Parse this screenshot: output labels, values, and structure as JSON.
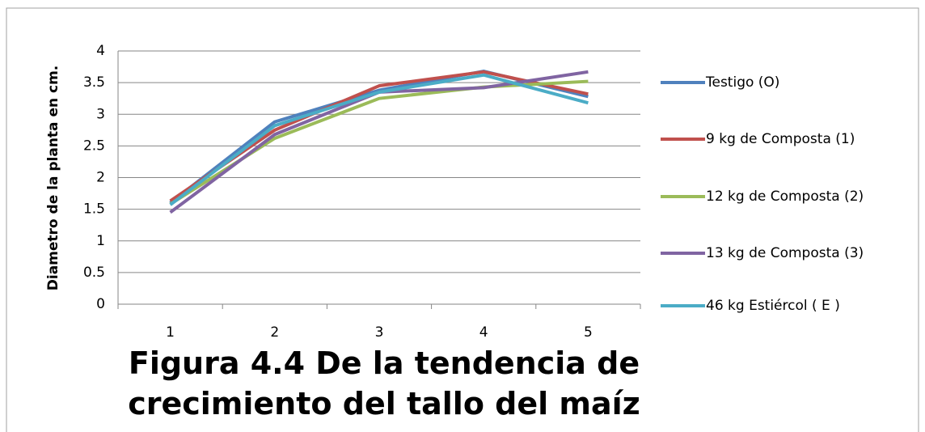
{
  "chart_data": {
    "type": "line",
    "title": "Figura 4.4 De la tendencia de crecimiento del tallo del maíz",
    "y_label": "Diametro de la planta en cm.",
    "categories": [
      1,
      2,
      3,
      4,
      5
    ],
    "series": [
      {
        "name": "Testigo (O)",
        "color": "#4f81bd",
        "values": [
          1.6,
          2.88,
          3.38,
          3.68,
          3.28
        ]
      },
      {
        "name": "9 kg de Composta (1)",
        "color": "#c0504d",
        "values": [
          1.63,
          2.75,
          3.45,
          3.67,
          3.32
        ]
      },
      {
        "name": "12 kg de Composta (2)",
        "color": "#9bbb59",
        "values": [
          1.58,
          2.62,
          3.25,
          3.43,
          3.52
        ]
      },
      {
        "name": "13 kg de Composta (3)",
        "color": "#8064a2",
        "values": [
          1.45,
          2.68,
          3.35,
          3.42,
          3.67
        ]
      },
      {
        "name": "46 kg Estiércol ( E )",
        "color": "#4bacc6",
        "values": [
          1.57,
          2.82,
          3.35,
          3.62,
          3.18
        ]
      }
    ],
    "ylim": [
      0,
      4
    ],
    "yticks": [
      0,
      0.5,
      1,
      1.5,
      2,
      2.5,
      3,
      3.5,
      4
    ],
    "grid": true,
    "legend": "right"
  }
}
